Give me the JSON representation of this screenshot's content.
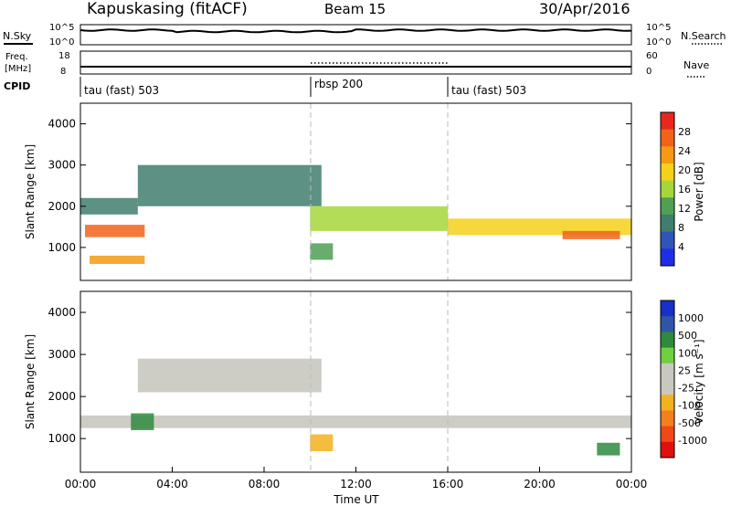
{
  "header": {
    "station": "Kapuskasing (fitACF)",
    "beam": "Beam 15",
    "date": "30/Apr/2016"
  },
  "strip_panels": {
    "nsky_label": "N.Sky",
    "nsky_ticks": [
      "10^5",
      "10^0"
    ],
    "nsearch_label": "N.Search",
    "nsearch_ticks": [
      "10^5",
      "10^0"
    ],
    "freq_label": "Freq.",
    "freq_unit": "[MHz]",
    "freq_ticks": [
      "18",
      "8"
    ],
    "nave_label": "Nave",
    "nave_ticks": [
      "60",
      "0"
    ],
    "cpid_label": "CPID",
    "cpid_segments": [
      {
        "label": "tau (fast) 503",
        "start_hour": 0,
        "end_hour": 10
      },
      {
        "label": "rbsp 200",
        "start_hour": 10,
        "end_hour": 16
      },
      {
        "label": "tau (fast) 503",
        "start_hour": 16,
        "end_hour": 24
      }
    ]
  },
  "colors": {
    "power_scale": [
      "#1e2ee8",
      "#2f55b8",
      "#3f7e6e",
      "#4f9f55",
      "#a6d63c",
      "#f5d11a",
      "#f59a12",
      "#f2631a",
      "#e8281e"
    ],
    "velocity_scale": [
      "#1830c8",
      "#2f56a6",
      "#2f8a3e",
      "#70d040",
      "#c8c8c0",
      "#c8c8c0",
      "#f2b21e",
      "#f2801e",
      "#f04818",
      "#e01010"
    ],
    "ground_scatter": "#c4c4bc"
  },
  "chart_data": [
    {
      "type": "heatmap",
      "title": "",
      "ylabel": "Slant Range [km]",
      "colorbar_label": "Power [dB]",
      "colorbar_ticks": [
        "28",
        "24",
        "20",
        "16",
        "12",
        "8",
        "4"
      ],
      "xlim": [
        0,
        24
      ],
      "ylim": [
        200,
        4500
      ],
      "yticks": [
        "1000",
        "2000",
        "3000",
        "4000"
      ],
      "regions": [
        {
          "x": [
            0.2,
            2.8
          ],
          "y": [
            1250,
            1550
          ],
          "power": 26
        },
        {
          "x": [
            0.4,
            2.8
          ],
          "y": [
            600,
            800
          ],
          "power": 22
        },
        {
          "x": [
            0,
            2.5
          ],
          "y": [
            1800,
            2200
          ],
          "power": 10
        },
        {
          "x": [
            2.5,
            10.5
          ],
          "y": [
            2000,
            3000
          ],
          "power": 9
        },
        {
          "x": [
            10,
            16
          ],
          "y": [
            1400,
            2000
          ],
          "power": 16
        },
        {
          "x": [
            10,
            11
          ],
          "y": [
            700,
            1100
          ],
          "power": 14
        },
        {
          "x": [
            16,
            24
          ],
          "y": [
            1300,
            1700
          ],
          "power": 18
        },
        {
          "x": [
            21,
            23.5
          ],
          "y": [
            1200,
            1400
          ],
          "power": 25
        }
      ]
    },
    {
      "type": "heatmap",
      "title": "",
      "xlabel": "Time UT",
      "ylabel": "Slant Range [km]",
      "colorbar_label": "Velocity [m s⁻¹]",
      "colorbar_ticks": [
        "1000",
        "500",
        "100",
        "25",
        "-25",
        "-100",
        "-500",
        "-1000"
      ],
      "xlim": [
        0,
        24
      ],
      "ylim": [
        200,
        4500
      ],
      "xticks": [
        "00:00",
        "04:00",
        "08:00",
        "12:00",
        "16:00",
        "20:00",
        "00:00"
      ],
      "yticks": [
        "1000",
        "2000",
        "3000",
        "4000"
      ],
      "regions": [
        {
          "x": [
            0,
            24
          ],
          "y": [
            1250,
            1550
          ],
          "velocity": 0,
          "ground_scatter": true
        },
        {
          "x": [
            2.5,
            10.5
          ],
          "y": [
            2100,
            2900
          ],
          "velocity": 0,
          "ground_scatter": true
        },
        {
          "x": [
            10,
            11
          ],
          "y": [
            700,
            1100
          ],
          "velocity": -150
        },
        {
          "x": [
            2.2,
            3.2
          ],
          "y": [
            1200,
            1600
          ],
          "velocity": 150
        },
        {
          "x": [
            22.5,
            23.5
          ],
          "y": [
            600,
            900
          ],
          "velocity": 300
        }
      ]
    }
  ]
}
